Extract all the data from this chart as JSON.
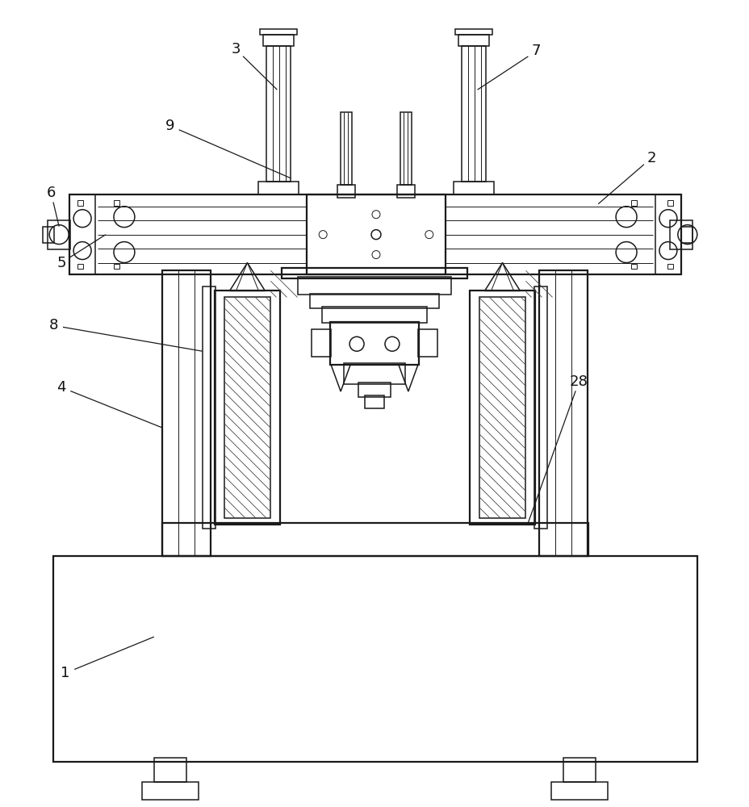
{
  "bg_color": "#ffffff",
  "line_color": "#1a1a1a",
  "lw_thin": 0.7,
  "lw_med": 1.1,
  "lw_thick": 1.6,
  "fig_width": 9.29,
  "fig_height": 10.0,
  "label_fontsize": 13
}
